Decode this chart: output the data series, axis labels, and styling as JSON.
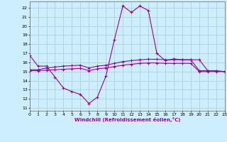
{
  "curve1_x": [
    0,
    1,
    2,
    3,
    4,
    5,
    6,
    7,
    8,
    9,
    10,
    11,
    12,
    13,
    14,
    15,
    16,
    17,
    18,
    19,
    20,
    21,
    22,
    23
  ],
  "curve1_y": [
    16.8,
    15.6,
    15.6,
    14.4,
    13.2,
    12.8,
    12.5,
    11.5,
    12.2,
    14.5,
    18.5,
    22.2,
    21.5,
    22.2,
    21.7,
    17.0,
    16.2,
    16.4,
    16.3,
    16.3,
    16.3,
    15.1,
    15.1,
    15.0
  ],
  "curve2_x": [
    0,
    1,
    2,
    3,
    4,
    5,
    6,
    7,
    8,
    9,
    10,
    11,
    12,
    13,
    14,
    15,
    16,
    17,
    18,
    19,
    20,
    21,
    22,
    23
  ],
  "curve2_y": [
    15.2,
    15.2,
    15.4,
    15.5,
    15.6,
    15.65,
    15.7,
    15.4,
    15.6,
    15.7,
    15.9,
    16.1,
    16.2,
    16.3,
    16.35,
    16.35,
    16.3,
    16.3,
    16.3,
    16.3,
    15.1,
    15.1,
    15.05,
    15.0
  ],
  "curve3_x": [
    0,
    1,
    2,
    3,
    4,
    5,
    6,
    7,
    8,
    9,
    10,
    11,
    12,
    13,
    14,
    15,
    16,
    17,
    18,
    19,
    20,
    21,
    22,
    23
  ],
  "curve3_y": [
    15.1,
    15.1,
    15.15,
    15.2,
    15.25,
    15.3,
    15.35,
    15.1,
    15.3,
    15.4,
    15.55,
    15.7,
    15.8,
    15.9,
    15.95,
    15.95,
    15.9,
    15.9,
    15.9,
    15.9,
    15.0,
    15.0,
    15.0,
    15.0
  ],
  "line_color": "#990099",
  "bg_color": "#cceeff",
  "grid_color": "#aacccc",
  "xlabel": "Windchill (Refroidissement éolien,°C)",
  "xlim": [
    0,
    23
  ],
  "ylim": [
    11,
    22.5
  ],
  "yticks": [
    11,
    12,
    13,
    14,
    15,
    16,
    17,
    18,
    19,
    20,
    21,
    22
  ],
  "xticks": [
    0,
    1,
    2,
    3,
    4,
    5,
    6,
    7,
    8,
    9,
    10,
    11,
    12,
    13,
    14,
    15,
    16,
    17,
    18,
    19,
    20,
    21,
    22,
    23
  ]
}
